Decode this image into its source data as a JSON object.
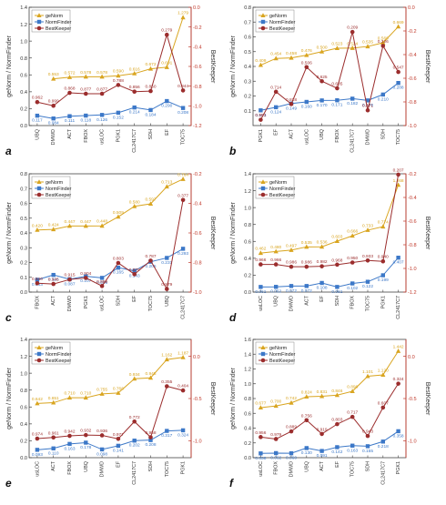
{
  "figure": {
    "colors": {
      "genorm": "#d9a520",
      "normfinder": "#3c78c8",
      "bestkeeper": "#9b2d2d",
      "right_axis": "#c0392b",
      "axis": "#444444"
    },
    "markers": {
      "genorm": "triangle",
      "normfinder": "square",
      "bestkeeper": "circle"
    }
  },
  "chart_data": [
    {
      "panel": "a",
      "type": "line",
      "legend_position": "top-left",
      "xlabel": "",
      "ylabel_left": "geNorm / NormFinder",
      "ylabel_right": "BestKeeper",
      "categories": [
        "UBQ",
        "DMWD",
        "ACT",
        "FBOX",
        "usLOC",
        "PGK1",
        "CL2417C7",
        "SDH",
        "EF",
        "TOC75"
      ],
      "ylim_left": [
        0.0,
        1.4
      ],
      "yticks_left": [
        "0.0",
        "0.2",
        "0.4",
        "0.6",
        "0.8",
        "1.0",
        "1.2",
        "1.4"
      ],
      "ylim_right": [
        -1.2,
        0.0
      ],
      "yticks_right": [
        "-1.2",
        "-1.0",
        "-0.8",
        "-0.6",
        "-0.4",
        "-0.2",
        "0.0"
      ],
      "series": [
        {
          "name": "geNorm",
          "axis": "left",
          "values": [
            null,
            0.553,
            0.572,
            0.578,
            0.578,
            0.59,
            0.616,
            0.672,
            0.691,
            1.279
          ],
          "labels": [
            "",
            "0.553",
            "0.572",
            "0.578",
            "0.578",
            "0.590",
            "0.616",
            "0.672",
            "0.691",
            "1.279"
          ]
        },
        {
          "name": "NormFinder",
          "axis": "left",
          "values": [
            0.117,
            0.084,
            0.111,
            0.118,
            0.126,
            0.152,
            0.214,
            0.184,
            0.29,
            0.208
          ],
          "labels": [
            "0.117",
            "0.084",
            "0.111",
            "0.118",
            "0.126",
            "0.152",
            "0.214",
            "0.184",
            "0.290",
            "0.208"
          ]
        },
        {
          "name": "BestKeeper",
          "axis": "right",
          "values": [
            -0.962,
            -0.999,
            -0.868,
            -0.877,
            -0.877,
            -0.788,
            -0.856,
            -0.85,
            -0.279,
            -0.844
          ],
          "labels": [
            "0.962",
            "0.999",
            "0.868",
            "0.877",
            "0.877",
            "0.788",
            "0.856",
            "0.850",
            "0.279",
            "0.844"
          ]
        }
      ]
    },
    {
      "panel": "b",
      "type": "line",
      "legend_position": "top-left",
      "xlabel": "",
      "ylabel_left": "geNorm / NormFinder",
      "ylabel_right": "BestKeeper",
      "categories": [
        "PGK1",
        "EF",
        "ACT",
        "usLOC",
        "UBQ",
        "FBOX",
        "CL2417C7",
        "DMWD",
        "SDH",
        "TOC75"
      ],
      "ylim_left": [
        0.0,
        0.8
      ],
      "yticks_left": [
        "0.1",
        "0.2",
        "0.3",
        "0.4",
        "0.5",
        "0.6",
        "0.7",
        "0.8"
      ],
      "ylim_right": [
        -1.0,
        0.0
      ],
      "yticks_right": [
        "-1.0",
        "-0.8",
        "-0.6",
        "-0.4",
        "-0.2",
        "0.0"
      ],
      "series": [
        {
          "name": "geNorm",
          "axis": "left",
          "values": [
            0.409,
            0.454,
            0.458,
            0.476,
            0.5,
            0.523,
            0.524,
            0.535,
            0.56,
            0.669
          ],
          "labels": [
            "0.409",
            "0.454",
            "0.458",
            "0.476",
            "0.500",
            "0.523",
            "0.524",
            "0.535",
            "0.560",
            "0.669"
          ]
        },
        {
          "name": "NormFinder",
          "axis": "left",
          "values": [
            0.103,
            0.124,
            0.149,
            0.16,
            0.17,
            0.171,
            0.182,
            0.17,
            0.21,
            0.288
          ],
          "labels": [
            "0.103",
            "0.124",
            "0.149",
            "0.160",
            "0.170",
            "0.171",
            "0.182",
            "0.170",
            "0.210",
            "0.288"
          ]
        },
        {
          "name": "BestKeeper",
          "axis": "right",
          "values": [
            -0.951,
            -0.714,
            -0.818,
            -0.506,
            -0.625,
            -0.685,
            -0.209,
            -0.871,
            -0.326,
            -0.547
          ],
          "labels": [
            "0.951",
            "0.714",
            "0.818",
            "0.506",
            "0.625",
            "0.685",
            "0.209",
            "0.871",
            "0.326",
            "0.547"
          ]
        }
      ]
    },
    {
      "panel": "c",
      "type": "line",
      "legend_position": "top-left",
      "xlabel": "",
      "ylabel_left": "geNorm / NormFinder",
      "ylabel_right": "BestKeeper",
      "categories": [
        "FBOX",
        "ACT",
        "DMWD",
        "PGK1",
        "usLOC",
        "SDH",
        "EF",
        "TOC75",
        "UBQ",
        "CL2417C7"
      ],
      "ylim_left": [
        0.0,
        0.8
      ],
      "yticks_left": [
        "0.0",
        "0.1",
        "0.2",
        "0.3",
        "0.4",
        "0.5",
        "0.6",
        "0.7",
        "0.8"
      ],
      "ylim_right": [
        -1.0,
        -0.2
      ],
      "yticks_right": [
        "-1.0",
        "-0.8",
        "-0.6",
        "-0.4",
        "-0.2"
      ],
      "series": [
        {
          "name": "geNorm",
          "axis": "left",
          "values": [
            0.42,
            0.424,
            0.447,
            0.447,
            0.448,
            0.509,
            0.58,
            0.597,
            0.713,
            0.764
          ],
          "labels": [
            "0.420",
            "0.424",
            "0.447",
            "0.447",
            "0.448",
            "0.509",
            "0.580",
            "0.597",
            "0.713",
            "0.764"
          ]
        },
        {
          "name": "NormFinder",
          "axis": "left",
          "values": [
            0.083,
            0.116,
            0.087,
            0.107,
            0.096,
            0.165,
            0.143,
            0.205,
            0.231,
            0.293
          ],
          "labels": [
            "0.083",
            "0.116",
            "0.087",
            "0.107",
            "0.096",
            "0.165",
            "0.143",
            "0.205",
            "0.231",
            "0.293"
          ]
        },
        {
          "name": "BestKeeper",
          "axis": "right",
          "values": [
            -0.94,
            -0.945,
            -0.915,
            -0.904,
            -0.959,
            -0.803,
            -0.879,
            -0.787,
            -0.979,
            -0.377
          ],
          "labels": [
            "0.940",
            "0.945",
            "0.915",
            "0.904",
            "0.959",
            "0.803",
            "0.879",
            "0.787",
            "0.979",
            "0.377"
          ]
        }
      ]
    },
    {
      "panel": "d",
      "type": "line",
      "legend_position": "top-left",
      "xlabel": "",
      "ylabel_left": "geNorm / NormFinder",
      "ylabel_right": "BestKeeper",
      "categories": [
        "usLOC",
        "UBQ",
        "DMWD",
        "ACT",
        "EF",
        "SDH",
        "FBOX",
        "TOC75",
        "PGK1",
        "CL2417C7"
      ],
      "ylim_left": [
        0.0,
        1.4
      ],
      "yticks_left": [
        "0.0",
        "0.2",
        "0.4",
        "0.6",
        "0.8",
        "1.0",
        "1.2",
        "1.4"
      ],
      "ylim_right": [
        -1.2,
        -0.2
      ],
      "yticks_right": [
        "-1.2",
        "-1.0",
        "-0.8",
        "-0.6",
        "-0.4",
        "-0.2"
      ],
      "series": [
        {
          "name": "geNorm",
          "axis": "left",
          "values": [
            0.462,
            0.48,
            0.497,
            0.535,
            0.536,
            0.603,
            0.666,
            0.733,
            0.774,
            1.268
          ],
          "labels": [
            "0.462",
            "0.480",
            "0.497",
            "0.535",
            "0.536",
            "0.603",
            "0.666",
            "0.733",
            "0.774",
            "1.268"
          ]
        },
        {
          "name": "NormFinder",
          "axis": "left",
          "values": [
            0.061,
            0.062,
            0.072,
            0.072,
            0.108,
            0.061,
            0.102,
            0.122,
            0.199,
            0.407
          ],
          "labels": [
            "0.061",
            "0.062",
            "0.072",
            "0.072",
            "0.108",
            "0.061",
            "0.102",
            "0.122",
            "0.199",
            "0.407"
          ]
        },
        {
          "name": "BestKeeper",
          "axis": "right",
          "values": [
            -0.966,
            -0.966,
            -0.986,
            -0.986,
            -0.982,
            -0.968,
            -0.95,
            -0.933,
            -0.94,
            -0.207
          ],
          "labels": [
            "0.966",
            "0.966",
            "0.986",
            "0.986",
            "0.982",
            "0.968",
            "0.950",
            "0.933",
            "0.940",
            "0.207"
          ]
        }
      ]
    },
    {
      "panel": "e",
      "type": "line",
      "legend_position": "top-left",
      "xlabel": "",
      "ylabel_left": "geNorm / NormFinder",
      "ylabel_right": "BestKeeper",
      "categories": [
        "usLOC",
        "ACT",
        "FBOX",
        "UBQ",
        "DMWD",
        "EF",
        "CL2417C7",
        "SDH",
        "TOC75",
        "PGK1"
      ],
      "ylim_left": [
        0.0,
        1.4
      ],
      "yticks_left": [
        "0.0",
        "0.2",
        "0.4",
        "0.6",
        "0.8",
        "1.0",
        "1.2",
        "1.4"
      ],
      "ylim_right": [
        -1.2,
        0.2
      ],
      "yticks_right": [
        "-1.0",
        "-0.5",
        "0.0"
      ],
      "series": [
        {
          "name": "geNorm",
          "axis": "left",
          "values": [
            0.642,
            0.651,
            0.71,
            0.71,
            0.755,
            0.766,
            0.934,
            0.945,
            1.162,
            1.187
          ],
          "labels": [
            "0.642",
            "0.651",
            "0.710",
            "0.710",
            "0.755",
            "0.766",
            "0.934",
            "0.945",
            "1.162",
            "1.187"
          ]
        },
        {
          "name": "NormFinder",
          "axis": "left",
          "values": [
            0.093,
            0.11,
            0.163,
            0.178,
            0.098,
            0.141,
            0.202,
            0.208,
            0.317,
            0.324
          ],
          "labels": [
            "0.093",
            "0.110",
            "0.163",
            "0.178",
            "0.098",
            "0.141",
            "0.202",
            "0.208",
            "0.317",
            "0.324"
          ]
        },
        {
          "name": "BestKeeper",
          "axis": "right",
          "values": [
            -0.974,
            -0.961,
            -0.942,
            -0.932,
            -0.936,
            -0.977,
            -0.772,
            -0.958,
            -0.355,
            -0.404
          ],
          "labels": [
            "0.974",
            "0.961",
            "0.942",
            "0.932",
            "0.936",
            "0.977",
            "0.772",
            "0.958",
            "0.355",
            "0.404"
          ]
        }
      ]
    },
    {
      "panel": "f",
      "type": "line",
      "legend_position": "top-left",
      "xlabel": "",
      "ylabel_left": "geNorm / NormFinder",
      "ylabel_right": "BestKeeper",
      "categories": [
        "usLOC",
        "FBOX",
        "DMWD",
        "UBQ",
        "ACT",
        "EF",
        "TOC75",
        "SDH",
        "CL2417C7",
        "PGK1"
      ],
      "ylim_left": [
        0.0,
        1.6
      ],
      "yticks_left": [
        "0.0",
        "0.2",
        "0.4",
        "0.6",
        "0.8",
        "1.0",
        "1.2",
        "1.4",
        "1.6"
      ],
      "ylim_right": [
        -1.2,
        0.2
      ],
      "yticks_right": [
        "-1.0",
        "-0.5",
        "0.0"
      ],
      "series": [
        {
          "name": "geNorm",
          "axis": "left",
          "values": [
            0.677,
            0.7,
            0.742,
            0.824,
            0.831,
            0.846,
            0.898,
            1.101,
            1.12,
            1.442
          ],
          "labels": [
            "0.677",
            "0.700",
            "0.742",
            "0.824",
            "0.831",
            "0.846",
            "0.898",
            "1.101",
            "1.120",
            "1.442"
          ]
        },
        {
          "name": "NormFinder",
          "axis": "left",
          "values": [
            0.058,
            0.062,
            0.06,
            0.13,
            0.091,
            0.142,
            0.163,
            0.155,
            0.218,
            0.358
          ],
          "labels": [
            "0.058",
            "0.062",
            "0.060",
            "0.130",
            "0.091",
            "0.142",
            "0.163",
            "0.155",
            "0.218",
            "0.358"
          ]
        },
        {
          "name": "BestKeeper",
          "axis": "right",
          "values": [
            -0.956,
            -0.979,
            -0.889,
            -0.756,
            -0.919,
            -0.803,
            -0.717,
            -0.943,
            -0.607,
            -0.324
          ],
          "labels": [
            "0.956",
            "0.979",
            "0.889",
            "0.756",
            "0.919",
            "0.803",
            "0.717",
            "0.943",
            "0.607",
            "0.324"
          ]
        }
      ]
    }
  ]
}
